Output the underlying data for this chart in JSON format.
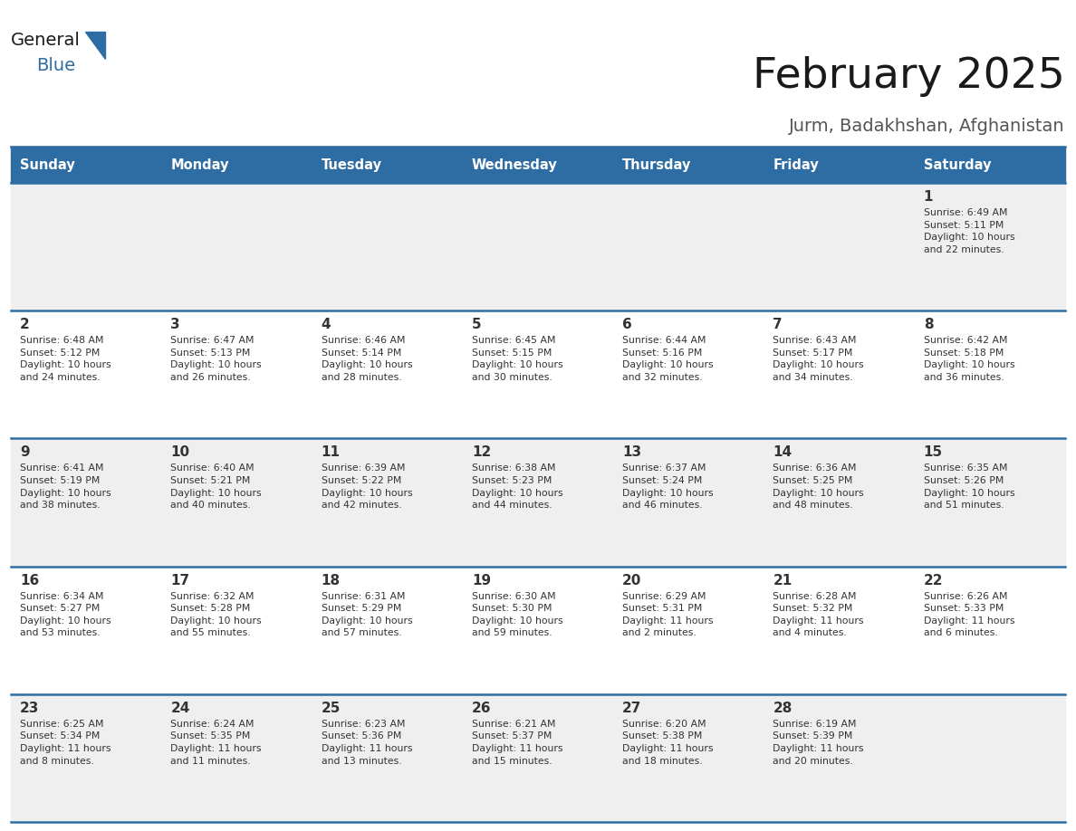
{
  "title": "February 2025",
  "subtitle": "Jurm, Badakhshan, Afghanistan",
  "header_bg": "#2E6DA4",
  "header_text": "#FFFFFF",
  "cell_bg_light": "#EFEFEF",
  "cell_bg_white": "#FFFFFF",
  "border_color": "#2E6DA4",
  "text_color": "#333333",
  "day_headers": [
    "Sunday",
    "Monday",
    "Tuesday",
    "Wednesday",
    "Thursday",
    "Friday",
    "Saturday"
  ],
  "days": [
    {
      "day": 1,
      "col": 6,
      "row": 0,
      "sunrise": "6:49 AM",
      "sunset": "5:11 PM",
      "daylight": "10 hours and 22 minutes."
    },
    {
      "day": 2,
      "col": 0,
      "row": 1,
      "sunrise": "6:48 AM",
      "sunset": "5:12 PM",
      "daylight": "10 hours and 24 minutes."
    },
    {
      "day": 3,
      "col": 1,
      "row": 1,
      "sunrise": "6:47 AM",
      "sunset": "5:13 PM",
      "daylight": "10 hours and 26 minutes."
    },
    {
      "day": 4,
      "col": 2,
      "row": 1,
      "sunrise": "6:46 AM",
      "sunset": "5:14 PM",
      "daylight": "10 hours and 28 minutes."
    },
    {
      "day": 5,
      "col": 3,
      "row": 1,
      "sunrise": "6:45 AM",
      "sunset": "5:15 PM",
      "daylight": "10 hours and 30 minutes."
    },
    {
      "day": 6,
      "col": 4,
      "row": 1,
      "sunrise": "6:44 AM",
      "sunset": "5:16 PM",
      "daylight": "10 hours and 32 minutes."
    },
    {
      "day": 7,
      "col": 5,
      "row": 1,
      "sunrise": "6:43 AM",
      "sunset": "5:17 PM",
      "daylight": "10 hours and 34 minutes."
    },
    {
      "day": 8,
      "col": 6,
      "row": 1,
      "sunrise": "6:42 AM",
      "sunset": "5:18 PM",
      "daylight": "10 hours and 36 minutes."
    },
    {
      "day": 9,
      "col": 0,
      "row": 2,
      "sunrise": "6:41 AM",
      "sunset": "5:19 PM",
      "daylight": "10 hours and 38 minutes."
    },
    {
      "day": 10,
      "col": 1,
      "row": 2,
      "sunrise": "6:40 AM",
      "sunset": "5:21 PM",
      "daylight": "10 hours and 40 minutes."
    },
    {
      "day": 11,
      "col": 2,
      "row": 2,
      "sunrise": "6:39 AM",
      "sunset": "5:22 PM",
      "daylight": "10 hours and 42 minutes."
    },
    {
      "day": 12,
      "col": 3,
      "row": 2,
      "sunrise": "6:38 AM",
      "sunset": "5:23 PM",
      "daylight": "10 hours and 44 minutes."
    },
    {
      "day": 13,
      "col": 4,
      "row": 2,
      "sunrise": "6:37 AM",
      "sunset": "5:24 PM",
      "daylight": "10 hours and 46 minutes."
    },
    {
      "day": 14,
      "col": 5,
      "row": 2,
      "sunrise": "6:36 AM",
      "sunset": "5:25 PM",
      "daylight": "10 hours and 48 minutes."
    },
    {
      "day": 15,
      "col": 6,
      "row": 2,
      "sunrise": "6:35 AM",
      "sunset": "5:26 PM",
      "daylight": "10 hours and 51 minutes."
    },
    {
      "day": 16,
      "col": 0,
      "row": 3,
      "sunrise": "6:34 AM",
      "sunset": "5:27 PM",
      "daylight": "10 hours and 53 minutes."
    },
    {
      "day": 17,
      "col": 1,
      "row": 3,
      "sunrise": "6:32 AM",
      "sunset": "5:28 PM",
      "daylight": "10 hours and 55 minutes."
    },
    {
      "day": 18,
      "col": 2,
      "row": 3,
      "sunrise": "6:31 AM",
      "sunset": "5:29 PM",
      "daylight": "10 hours and 57 minutes."
    },
    {
      "day": 19,
      "col": 3,
      "row": 3,
      "sunrise": "6:30 AM",
      "sunset": "5:30 PM",
      "daylight": "10 hours and 59 minutes."
    },
    {
      "day": 20,
      "col": 4,
      "row": 3,
      "sunrise": "6:29 AM",
      "sunset": "5:31 PM",
      "daylight": "11 hours and 2 minutes."
    },
    {
      "day": 21,
      "col": 5,
      "row": 3,
      "sunrise": "6:28 AM",
      "sunset": "5:32 PM",
      "daylight": "11 hours and 4 minutes."
    },
    {
      "day": 22,
      "col": 6,
      "row": 3,
      "sunrise": "6:26 AM",
      "sunset": "5:33 PM",
      "daylight": "11 hours and 6 minutes."
    },
    {
      "day": 23,
      "col": 0,
      "row": 4,
      "sunrise": "6:25 AM",
      "sunset": "5:34 PM",
      "daylight": "11 hours and 8 minutes."
    },
    {
      "day": 24,
      "col": 1,
      "row": 4,
      "sunrise": "6:24 AM",
      "sunset": "5:35 PM",
      "daylight": "11 hours and 11 minutes."
    },
    {
      "day": 25,
      "col": 2,
      "row": 4,
      "sunrise": "6:23 AM",
      "sunset": "5:36 PM",
      "daylight": "11 hours and 13 minutes."
    },
    {
      "day": 26,
      "col": 3,
      "row": 4,
      "sunrise": "6:21 AM",
      "sunset": "5:37 PM",
      "daylight": "11 hours and 15 minutes."
    },
    {
      "day": 27,
      "col": 4,
      "row": 4,
      "sunrise": "6:20 AM",
      "sunset": "5:38 PM",
      "daylight": "11 hours and 18 minutes."
    },
    {
      "day": 28,
      "col": 5,
      "row": 4,
      "sunrise": "6:19 AM",
      "sunset": "5:39 PM",
      "daylight": "11 hours and 20 minutes."
    }
  ],
  "num_rows": 5,
  "num_cols": 7,
  "logo_general_color": "#1a1a1a",
  "logo_blue_color": "#2E6DA4",
  "logo_triangle_color": "#2E6DA4",
  "title_color": "#1a1a1a",
  "subtitle_color": "#555555"
}
